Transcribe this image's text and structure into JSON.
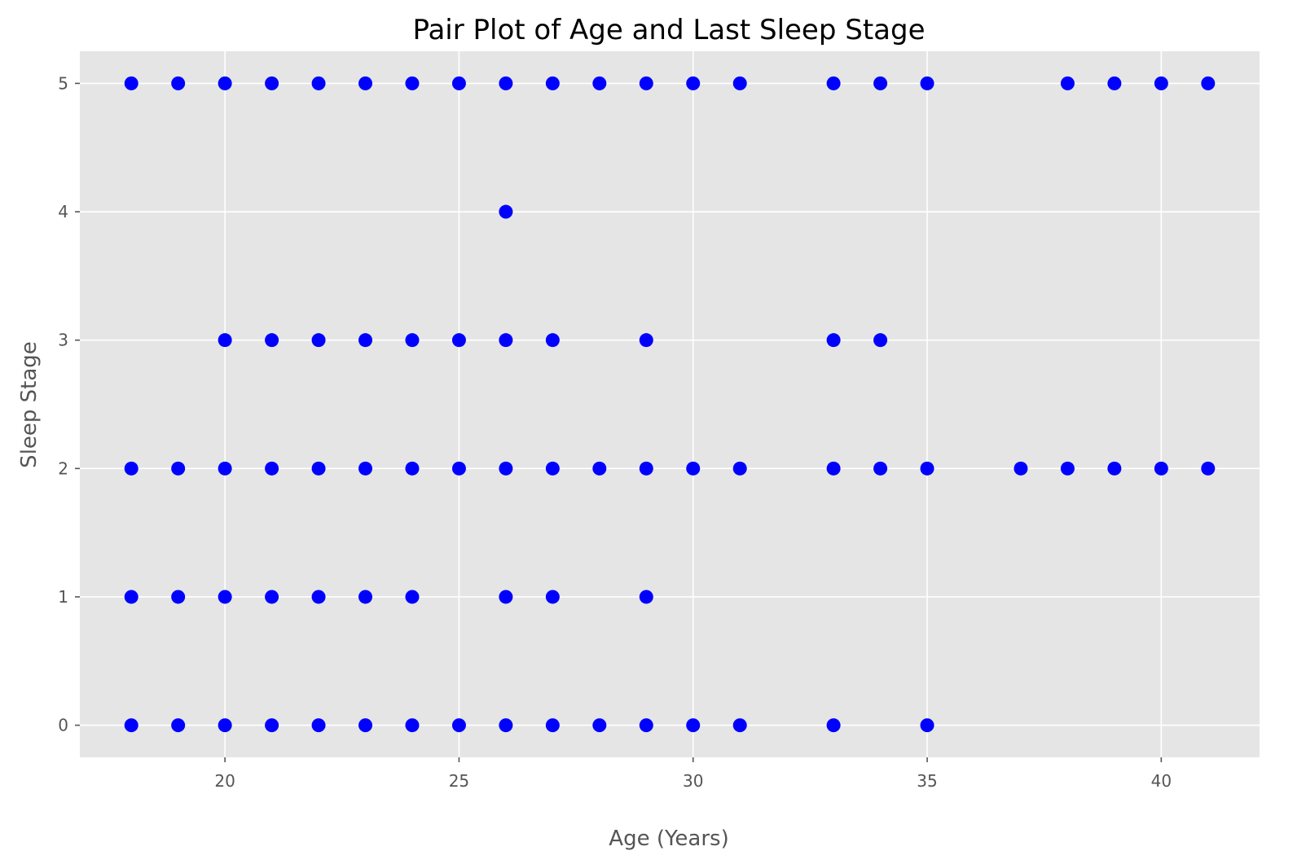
{
  "chart_data": {
    "type": "scatter",
    "title": "Pair Plot of Age and Last Sleep Stage",
    "xlabel": "Age (Years)",
    "ylabel": "Sleep Stage",
    "xlim": [
      16.9,
      42.1
    ],
    "ylim": [
      -0.25,
      5.25
    ],
    "xticks": [
      20,
      25,
      30,
      35,
      40
    ],
    "yticks": [
      0,
      1,
      2,
      3,
      4,
      5
    ],
    "grid": true,
    "point_color": "#0000ff",
    "plot_background": "#e5e5e5",
    "grid_color": "#ffffff",
    "points": [
      {
        "x": 18,
        "y": 5
      },
      {
        "x": 19,
        "y": 5
      },
      {
        "x": 20,
        "y": 5
      },
      {
        "x": 21,
        "y": 5
      },
      {
        "x": 22,
        "y": 5
      },
      {
        "x": 23,
        "y": 5
      },
      {
        "x": 24,
        "y": 5
      },
      {
        "x": 25,
        "y": 5
      },
      {
        "x": 26,
        "y": 5
      },
      {
        "x": 27,
        "y": 5
      },
      {
        "x": 28,
        "y": 5
      },
      {
        "x": 29,
        "y": 5
      },
      {
        "x": 30,
        "y": 5
      },
      {
        "x": 31,
        "y": 5
      },
      {
        "x": 33,
        "y": 5
      },
      {
        "x": 34,
        "y": 5
      },
      {
        "x": 35,
        "y": 5
      },
      {
        "x": 38,
        "y": 5
      },
      {
        "x": 39,
        "y": 5
      },
      {
        "x": 40,
        "y": 5
      },
      {
        "x": 41,
        "y": 5
      },
      {
        "x": 26,
        "y": 4
      },
      {
        "x": 20,
        "y": 3
      },
      {
        "x": 21,
        "y": 3
      },
      {
        "x": 22,
        "y": 3
      },
      {
        "x": 23,
        "y": 3
      },
      {
        "x": 24,
        "y": 3
      },
      {
        "x": 25,
        "y": 3
      },
      {
        "x": 26,
        "y": 3
      },
      {
        "x": 27,
        "y": 3
      },
      {
        "x": 29,
        "y": 3
      },
      {
        "x": 33,
        "y": 3
      },
      {
        "x": 34,
        "y": 3
      },
      {
        "x": 18,
        "y": 2
      },
      {
        "x": 19,
        "y": 2
      },
      {
        "x": 20,
        "y": 2
      },
      {
        "x": 21,
        "y": 2
      },
      {
        "x": 22,
        "y": 2
      },
      {
        "x": 23,
        "y": 2
      },
      {
        "x": 24,
        "y": 2
      },
      {
        "x": 25,
        "y": 2
      },
      {
        "x": 26,
        "y": 2
      },
      {
        "x": 27,
        "y": 2
      },
      {
        "x": 28,
        "y": 2
      },
      {
        "x": 29,
        "y": 2
      },
      {
        "x": 30,
        "y": 2
      },
      {
        "x": 31,
        "y": 2
      },
      {
        "x": 33,
        "y": 2
      },
      {
        "x": 34,
        "y": 2
      },
      {
        "x": 35,
        "y": 2
      },
      {
        "x": 37,
        "y": 2
      },
      {
        "x": 38,
        "y": 2
      },
      {
        "x": 39,
        "y": 2
      },
      {
        "x": 40,
        "y": 2
      },
      {
        "x": 41,
        "y": 2
      },
      {
        "x": 18,
        "y": 1
      },
      {
        "x": 19,
        "y": 1
      },
      {
        "x": 20,
        "y": 1
      },
      {
        "x": 21,
        "y": 1
      },
      {
        "x": 22,
        "y": 1
      },
      {
        "x": 23,
        "y": 1
      },
      {
        "x": 24,
        "y": 1
      },
      {
        "x": 26,
        "y": 1
      },
      {
        "x": 27,
        "y": 1
      },
      {
        "x": 29,
        "y": 1
      },
      {
        "x": 18,
        "y": 0
      },
      {
        "x": 19,
        "y": 0
      },
      {
        "x": 20,
        "y": 0
      },
      {
        "x": 21,
        "y": 0
      },
      {
        "x": 22,
        "y": 0
      },
      {
        "x": 23,
        "y": 0
      },
      {
        "x": 24,
        "y": 0
      },
      {
        "x": 25,
        "y": 0
      },
      {
        "x": 26,
        "y": 0
      },
      {
        "x": 27,
        "y": 0
      },
      {
        "x": 28,
        "y": 0
      },
      {
        "x": 29,
        "y": 0
      },
      {
        "x": 30,
        "y": 0
      },
      {
        "x": 31,
        "y": 0
      },
      {
        "x": 33,
        "y": 0
      },
      {
        "x": 35,
        "y": 0
      }
    ]
  }
}
